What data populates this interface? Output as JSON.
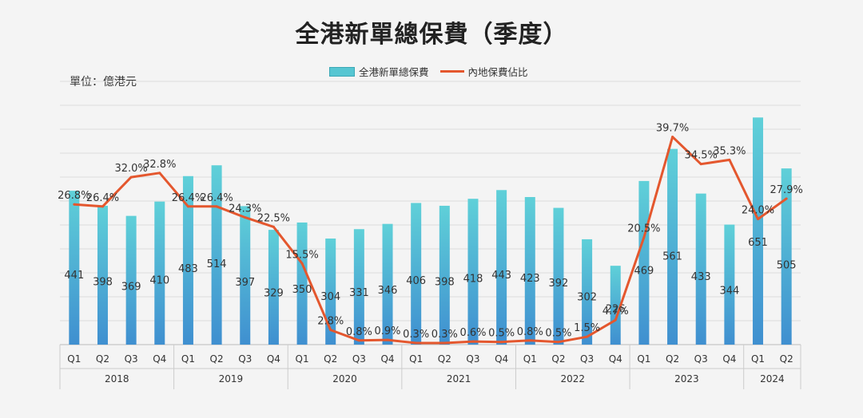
{
  "chart_data": {
    "type": "bar",
    "title": "全港新單總保費（季度）",
    "unit_label": "單位：億港元",
    "legend": [
      "全港新單總保費",
      "內地保費佔比"
    ],
    "years": [
      {
        "year": "2018",
        "quarters": [
          "Q1",
          "Q2",
          "Q3",
          "Q4"
        ]
      },
      {
        "year": "2019",
        "quarters": [
          "Q1",
          "Q2",
          "Q3",
          "Q4"
        ]
      },
      {
        "year": "2020",
        "quarters": [
          "Q1",
          "Q2",
          "Q3",
          "Q4"
        ]
      },
      {
        "year": "2021",
        "quarters": [
          "Q1",
          "Q2",
          "Q3",
          "Q4"
        ]
      },
      {
        "year": "2022",
        "quarters": [
          "Q1",
          "Q2",
          "Q3",
          "Q4"
        ]
      },
      {
        "year": "2023",
        "quarters": [
          "Q1",
          "Q2",
          "Q3",
          "Q4"
        ]
      },
      {
        "year": "2024",
        "quarters": [
          "Q1",
          "Q2"
        ]
      }
    ],
    "series": [
      {
        "name": "全港新單總保費",
        "type": "bar",
        "values": [
          441,
          398,
          369,
          410,
          483,
          514,
          397,
          329,
          350,
          304,
          331,
          346,
          406,
          398,
          418,
          443,
          423,
          392,
          302,
          226,
          469,
          561,
          433,
          344,
          651,
          505
        ],
        "labels": [
          "441",
          "398",
          "369",
          "410",
          "483",
          "514",
          "397",
          "329",
          "350",
          "304",
          "331",
          "346",
          "406",
          "398",
          "418",
          "443",
          "423",
          "392",
          "302",
          "226",
          "469",
          "561",
          "433",
          "344",
          "651",
          "505"
        ]
      },
      {
        "name": "內地保費佔比",
        "type": "line",
        "values": [
          26.8,
          26.4,
          32.0,
          32.8,
          26.4,
          26.4,
          24.3,
          22.5,
          15.5,
          2.8,
          0.8,
          0.9,
          0.3,
          0.3,
          0.6,
          0.5,
          0.8,
          0.5,
          1.5,
          4.7,
          20.5,
          39.7,
          34.5,
          35.3,
          24.0,
          27.9
        ],
        "labels": [
          "26.8%",
          "26.4%",
          "32.0%",
          "32.8%",
          "26.4%",
          "26.4%",
          "24.3%",
          "22.5%",
          "15.5%",
          "2.8%",
          "0.8%",
          "0.9%",
          "0.3%",
          "0.3%",
          "0.6%",
          "0.5%",
          "0.8%",
          "0.5%",
          "1.5%",
          "4.7%",
          "20.5%",
          "39.7%",
          "34.5%",
          "35.3%",
          "24.0%",
          "27.9%"
        ]
      }
    ],
    "colors": {
      "bar_top": "#5fd0d8",
      "bar_bottom": "#3f8fd0",
      "line": "#e4572e",
      "grid": "#dcdcdc"
    },
    "grid": true,
    "legend_position": "top"
  }
}
